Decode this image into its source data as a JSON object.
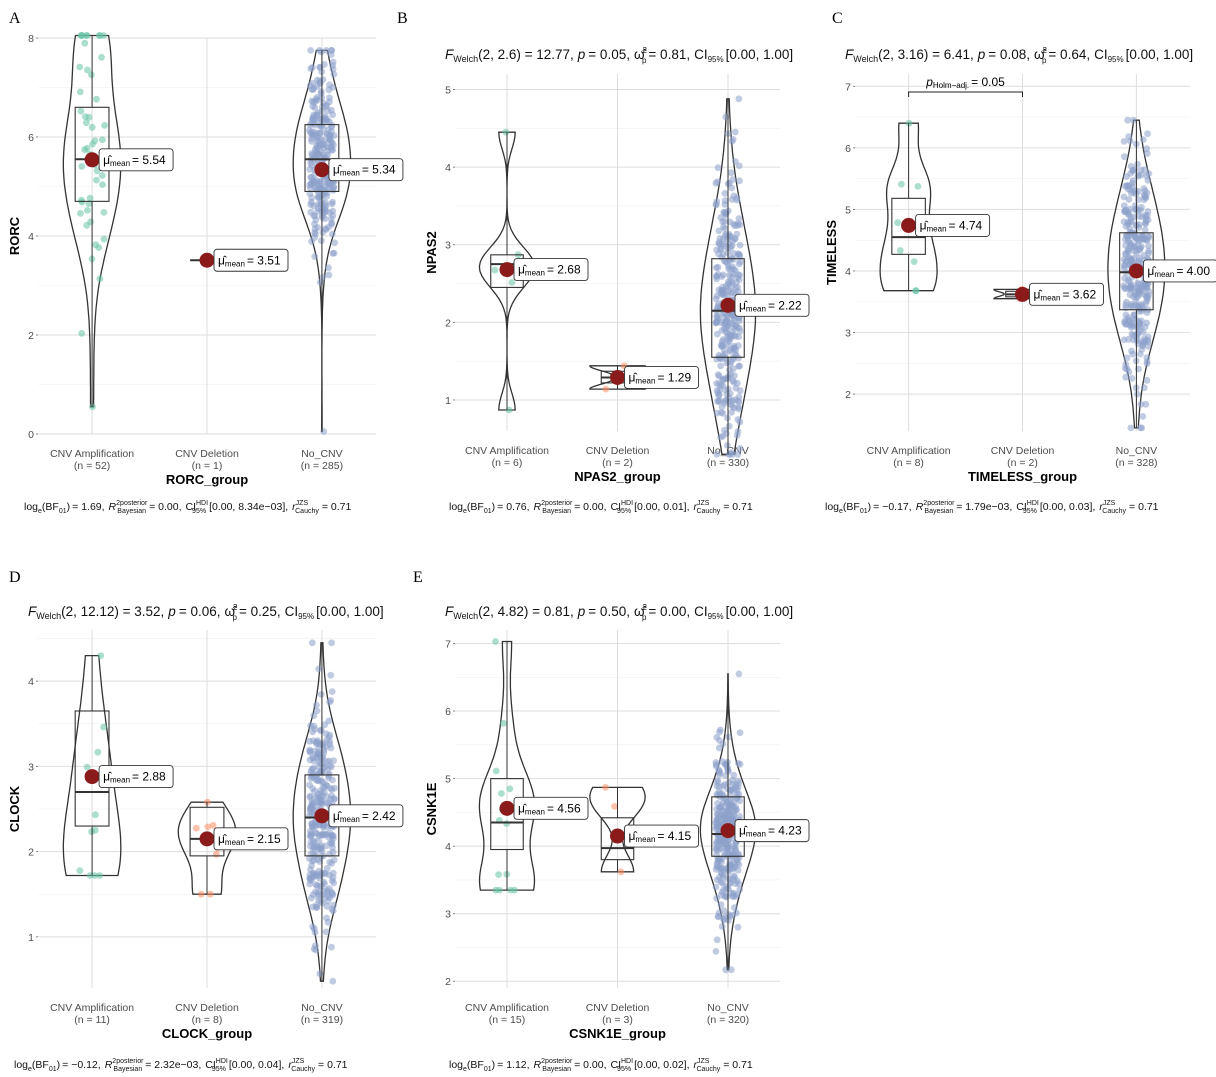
{
  "chart_data": [
    {
      "type": "violin-box-scatter",
      "panel": "A",
      "title": "",
      "xlabel": "RORC_group",
      "ylabel": "RORC",
      "ylim": [
        0,
        8
      ],
      "yticks": [
        0,
        2,
        4,
        6,
        8
      ],
      "categories": [
        "CNV Amplification",
        "CNV Deletion",
        "No_CNV"
      ],
      "n_labels": [
        "(n = 52)",
        "(n = 1)",
        "(n = 285)"
      ],
      "colors": [
        "#66c2a5",
        "#fc8d62",
        "#8da0cb"
      ],
      "box": [
        {
          "min": 0.55,
          "q1": 4.7,
          "median": 5.55,
          "q3": 6.6,
          "max": 8.05
        },
        {
          "min": 3.51,
          "q1": 3.51,
          "median": 3.51,
          "q3": 3.51,
          "max": 3.51
        },
        {
          "min": 0.05,
          "q1": 4.9,
          "median": 5.55,
          "q3": 6.25,
          "max": 7.75
        }
      ],
      "means": [
        5.54,
        3.51,
        5.34
      ],
      "mean_labels": [
        "= 5.54",
        "= 3.51",
        "= 5.34"
      ],
      "subtitle": "",
      "caption": "log_e(BF01) = 1.69, R²posterior Bayesian = 0.00, CI HDI 95% [0.00, 8.34e-03], r JZS Cauchy = 0.71",
      "caption_parts": {
        "bf": "= 1.69,",
        "r2": "= 0.00,",
        "ci": "[0.00, 8.34e−03],",
        "r": "= 0.71"
      }
    },
    {
      "type": "violin-box-scatter",
      "panel": "B",
      "xlabel": "NPAS2_group",
      "ylabel": "NPAS2",
      "ylim": [
        0.6,
        5.2
      ],
      "yticks": [
        1,
        2,
        3,
        4,
        5
      ],
      "categories": [
        "CNV Amplification",
        "CNV Deletion",
        "No_CNV"
      ],
      "n_labels": [
        "(n = 6)",
        "(n = 2)",
        "(n = 330)"
      ],
      "colors": [
        "#66c2a5",
        "#fc8d62",
        "#8da0cb"
      ],
      "box": [
        {
          "min": 0.87,
          "q1": 2.45,
          "median": 2.75,
          "q3": 2.87,
          "max": 4.45
        },
        {
          "min": 1.14,
          "q1": 1.22,
          "median": 1.29,
          "q3": 1.37,
          "max": 1.44
        },
        {
          "min": 0.3,
          "q1": 1.55,
          "median": 2.15,
          "q3": 2.82,
          "max": 4.88
        }
      ],
      "means": [
        2.68,
        1.29,
        2.22
      ],
      "mean_labels": [
        "= 2.68",
        "= 1.29",
        "= 2.22"
      ],
      "subtitle": "F Welch (2, 2.6) = 12.77, p = 0.05, ω²p = 0.81, CI95% [0.00, 1.00]",
      "subtitle_parts": {
        "f": "(2, 2.6) = 12.77,",
        "p": "= 0.05,",
        "w": "= 0.81,",
        "ci": "[0.00, 1.00]"
      },
      "caption_parts": {
        "bf": "= 0.76,",
        "r2": "= 0.00,",
        "ci": "[0.00, 0.01],",
        "r": "= 0.71"
      }
    },
    {
      "type": "violin-box-scatter",
      "panel": "C",
      "xlabel": "TIMELESS_group",
      "ylabel": "TIMELESS",
      "ylim": [
        1.4,
        7.2
      ],
      "yticks": [
        2,
        3,
        4,
        5,
        6,
        7
      ],
      "categories": [
        "CNV Amplification",
        "CNV Deletion",
        "No_CNV"
      ],
      "n_labels": [
        "(n = 8)",
        "(n = 2)",
        "(n = 328)"
      ],
      "colors": [
        "#66c2a5",
        "#fc8d62",
        "#8da0cb"
      ],
      "box": [
        {
          "min": 3.68,
          "q1": 4.27,
          "median": 4.55,
          "q3": 5.18,
          "max": 6.4
        },
        {
          "min": 3.55,
          "q1": 3.58,
          "median": 3.62,
          "q3": 3.67,
          "max": 3.7
        },
        {
          "min": 1.45,
          "q1": 3.37,
          "median": 3.98,
          "q3": 4.62,
          "max": 6.45
        }
      ],
      "means": [
        4.74,
        3.62,
        4.0
      ],
      "mean_labels": [
        "= 4.74",
        "= 3.62",
        "= 4.00"
      ],
      "subtitle_parts": {
        "f": "(2, 3.16) = 6.41,",
        "p": "= 0.08,",
        "w": "= 0.64,",
        "ci": "[0.00, 1.00]"
      },
      "comparison": {
        "from": 0,
        "to": 1,
        "label_sub": "Holm−adj.",
        "value": "= 0.05"
      },
      "caption_parts": {
        "bf": "= −0.17,",
        "r2": "= 1.79e−03,",
        "ci": "[0.00, 0.03],",
        "r": "= 0.71"
      }
    },
    {
      "type": "violin-box-scatter",
      "panel": "D",
      "xlabel": "CLOCK_group",
      "ylabel": "CLOCK",
      "ylim": [
        0.4,
        4.6
      ],
      "yticks": [
        1,
        2,
        3,
        4
      ],
      "categories": [
        "CNV Amplification",
        "CNV Deletion",
        "No_CNV"
      ],
      "n_labels": [
        "(n = 11)",
        "(n = 8)",
        "(n = 319)"
      ],
      "colors": [
        "#66c2a5",
        "#fc8d62",
        "#8da0cb"
      ],
      "box": [
        {
          "min": 1.72,
          "q1": 2.3,
          "median": 2.7,
          "q3": 3.65,
          "max": 4.3
        },
        {
          "min": 1.5,
          "q1": 1.95,
          "median": 2.15,
          "q3": 2.52,
          "max": 2.58
        },
        {
          "min": 0.48,
          "q1": 1.95,
          "median": 2.4,
          "q3": 2.9,
          "max": 4.45
        }
      ],
      "means": [
        2.88,
        2.15,
        2.42
      ],
      "mean_labels": [
        "= 2.88",
        "= 2.15",
        "= 2.42"
      ],
      "subtitle_parts": {
        "f": "(2, 12.12) = 3.52,",
        "p": "= 0.06,",
        "w": "= 0.25,",
        "ci": "[0.00, 1.00]"
      },
      "caption_parts": {
        "bf": "= −0.12,",
        "r2": "= 2.32e−03,",
        "ci": "[0.00, 0.04],",
        "r": "= 0.71"
      }
    },
    {
      "type": "violin-box-scatter",
      "panel": "E",
      "xlabel": "CSNK1E_group",
      "ylabel": "CSNK1E",
      "ylim": [
        1.9,
        7.2
      ],
      "yticks": [
        2,
        3,
        4,
        5,
        6,
        7
      ],
      "categories": [
        "CNV Amplification",
        "CNV Deletion",
        "No_CNV"
      ],
      "n_labels": [
        "(n = 15)",
        "(n = 3)",
        "(n = 320)"
      ],
      "colors": [
        "#66c2a5",
        "#fc8d62",
        "#8da0cb"
      ],
      "box": [
        {
          "min": 3.35,
          "q1": 3.95,
          "median": 4.35,
          "q3": 5.0,
          "max": 7.03
        },
        {
          "min": 3.62,
          "q1": 3.8,
          "median": 3.97,
          "q3": 4.42,
          "max": 4.87
        },
        {
          "min": 2.17,
          "q1": 3.85,
          "median": 4.18,
          "q3": 4.73,
          "max": 6.55
        }
      ],
      "means": [
        4.56,
        4.15,
        4.23
      ],
      "mean_labels": [
        "= 4.56",
        "= 4.15",
        "= 4.23"
      ],
      "subtitle_parts": {
        "f": "(2, 4.82) = 0.81,",
        "p": "= 0.50,",
        "w": "= 0.00,",
        "ci": "[0.00, 1.00]"
      },
      "caption_parts": {
        "bf": "= 1.12,",
        "r2": "= 0.00,",
        "ci": "[0.00, 0.02],",
        "r": "= 0.71"
      }
    }
  ],
  "mean_color": "#8b1a1a",
  "text": {
    "welch": "Welch",
    "log": "log",
    "e": "e",
    "bf": "(BF",
    "bf_sub": "01",
    "bf_close": ")",
    "r2": "R",
    "r2_sup": "2",
    "posterior": "posterior",
    "bayesian": "Bayesian",
    "ci": "CI",
    "hdi": "HDI",
    "ci95": "95%",
    "r": "r",
    "jzs": "JZS",
    "cauchy": "Cauchy",
    "mean_sub": "mean",
    "mu_hat": "μ̂",
    "omega_hat": "ω̂",
    "omega_sup": "2",
    "omega_sub": "p",
    "p": "p"
  }
}
